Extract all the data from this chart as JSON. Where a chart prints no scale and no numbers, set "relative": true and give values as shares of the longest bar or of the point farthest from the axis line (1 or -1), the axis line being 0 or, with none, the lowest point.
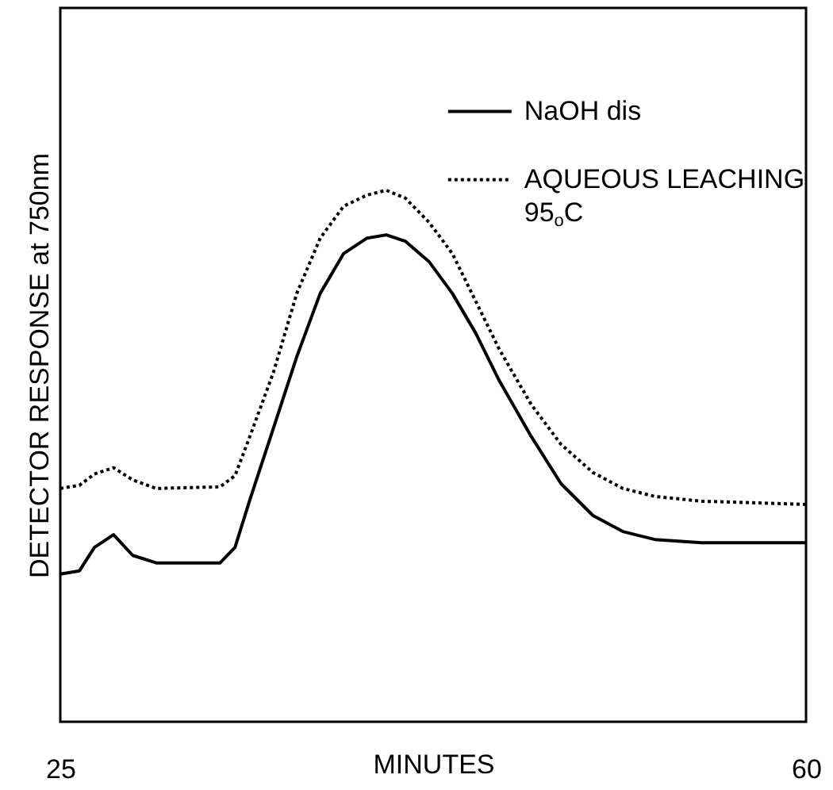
{
  "chart_data": {
    "type": "line",
    "relative": true,
    "xlabel": "MINUTES",
    "ylabel": "DETECTOR RESPONSE at 750nm",
    "xlim": [
      25,
      60
    ],
    "xticks": [
      25,
      60
    ],
    "grid": false,
    "legend": "top right",
    "marker": "none",
    "x": [
      25,
      25.9,
      26.6,
      27.5,
      28.4,
      29.5,
      32.5,
      33.2,
      33.9,
      35.0,
      36.1,
      37.2,
      38.3,
      39.4,
      40.3,
      41.2,
      42.3,
      43.4,
      44.5,
      45.6,
      47.1,
      48.5,
      50.0,
      51.4,
      52.9,
      55.1,
      60
    ],
    "series": [
      {
        "name": "NaOH dis",
        "color": "#000000",
        "line_style": "solid",
        "values": [
          0.278,
          0.284,
          0.328,
          0.352,
          0.313,
          0.299,
          0.299,
          0.328,
          0.418,
          0.552,
          0.687,
          0.806,
          0.881,
          0.91,
          0.916,
          0.904,
          0.866,
          0.806,
          0.731,
          0.642,
          0.537,
          0.448,
          0.388,
          0.358,
          0.343,
          0.337,
          0.337
        ]
      },
      {
        "name": "AQUEOUS LEACHING 95$_{o}$C",
        "color": "#000000",
        "line_style": "dotted",
        "values": [
          0.439,
          0.445,
          0.466,
          0.478,
          0.455,
          0.439,
          0.442,
          0.463,
          0.537,
          0.657,
          0.806,
          0.91,
          0.97,
          0.991,
          1.0,
          0.985,
          0.94,
          0.881,
          0.791,
          0.701,
          0.597,
          0.522,
          0.469,
          0.439,
          0.424,
          0.415,
          0.409
        ]
      }
    ]
  }
}
